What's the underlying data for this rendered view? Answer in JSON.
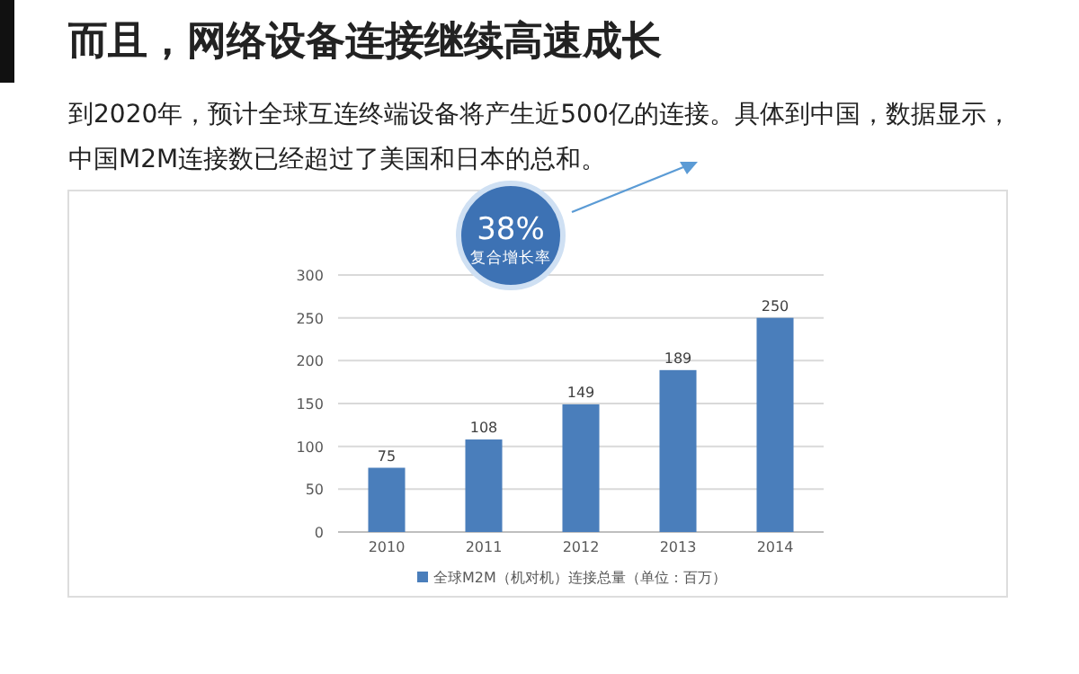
{
  "chart_data": {
    "type": "bar",
    "title": "而且，网络设备连接继续高速成长",
    "subtitle": "到2020年，预计全球互连终端设备将产生近500亿的连接。具体到中国，数据显示，中国M2M连接数已经超过了美国和日本的总和。",
    "categories": [
      "2010",
      "2011",
      "2012",
      "2013",
      "2014"
    ],
    "series": [
      {
        "name": "全球M2M（机对机）连接总量（单位：百万）",
        "color": "#4a7ebb",
        "values": [
          75,
          108,
          149,
          189,
          250
        ]
      }
    ],
    "ylim": [
      0,
      300
    ],
    "yticks": [
      0,
      50,
      100,
      150,
      200,
      250,
      300
    ],
    "grid": "y",
    "legend": "bottom",
    "data_labels": true,
    "annotations": [
      "38%",
      "复合增长率"
    ]
  }
}
